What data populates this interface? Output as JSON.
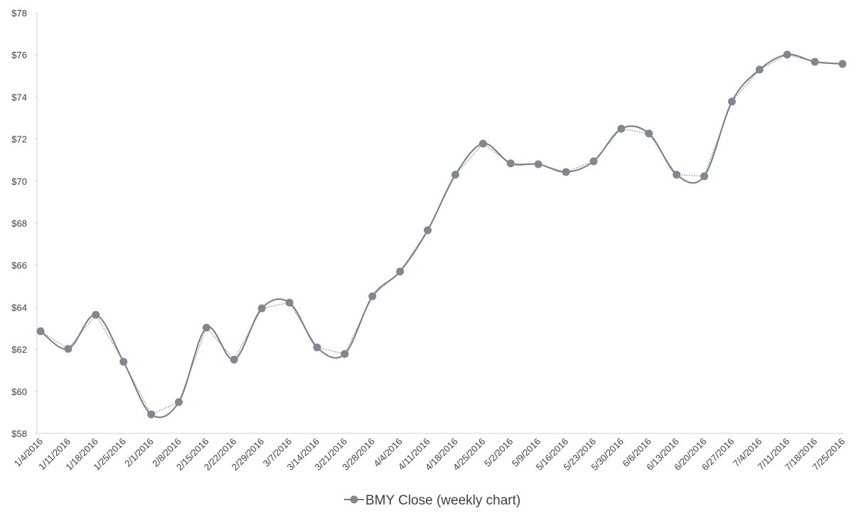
{
  "chart_data": {
    "type": "line",
    "smooth": true,
    "categories": [
      "1/4/2016",
      "1/11/2016",
      "1/18/2016",
      "1/25/2016",
      "2/1/2016",
      "2/8/2016",
      "2/15/2016",
      "2/22/2016",
      "2/29/2016",
      "3/7/2016",
      "3/14/2016",
      "3/21/2016",
      "3/28/2016",
      "4/4/2016",
      "4/11/2016",
      "4/18/2016",
      "4/25/2016",
      "5/2/2016",
      "5/9/2016",
      "5/16/2016",
      "5/23/2016",
      "5/30/2016",
      "6/6/2016",
      "6/13/2016",
      "6/20/2016",
      "6/27/2016",
      "7/4/2016",
      "7/11/2016",
      "7/18/2016",
      "7/25/2016"
    ],
    "series": [
      {
        "name": "BMY Close (weekly chart)",
        "color": "#7f8791",
        "values": [
          62.86,
          62.02,
          63.64,
          61.41,
          58.91,
          59.49,
          63.03,
          61.51,
          63.95,
          64.22,
          62.09,
          61.78,
          64.52,
          65.7,
          67.66,
          70.3,
          71.78,
          70.84,
          70.8,
          70.43,
          70.94,
          72.49,
          72.26,
          70.3,
          70.23,
          73.78,
          75.3,
          76.01,
          75.67,
          75.57
        ]
      }
    ],
    "ylim": [
      58,
      78
    ],
    "yticks": [
      {
        "value": 58,
        "label": "$58"
      },
      {
        "value": 60,
        "label": "$60"
      },
      {
        "value": 62,
        "label": "$62"
      },
      {
        "value": 64,
        "label": "$64"
      },
      {
        "value": 66,
        "label": "$66"
      },
      {
        "value": 68,
        "label": "$68"
      },
      {
        "value": 70,
        "label": "$70"
      },
      {
        "value": 72,
        "label": "$72"
      },
      {
        "value": 74,
        "label": "$74"
      },
      {
        "value": 76,
        "label": "$76"
      },
      {
        "value": 78,
        "label": "$78"
      }
    ],
    "grid": false,
    "legend": "bottom"
  }
}
